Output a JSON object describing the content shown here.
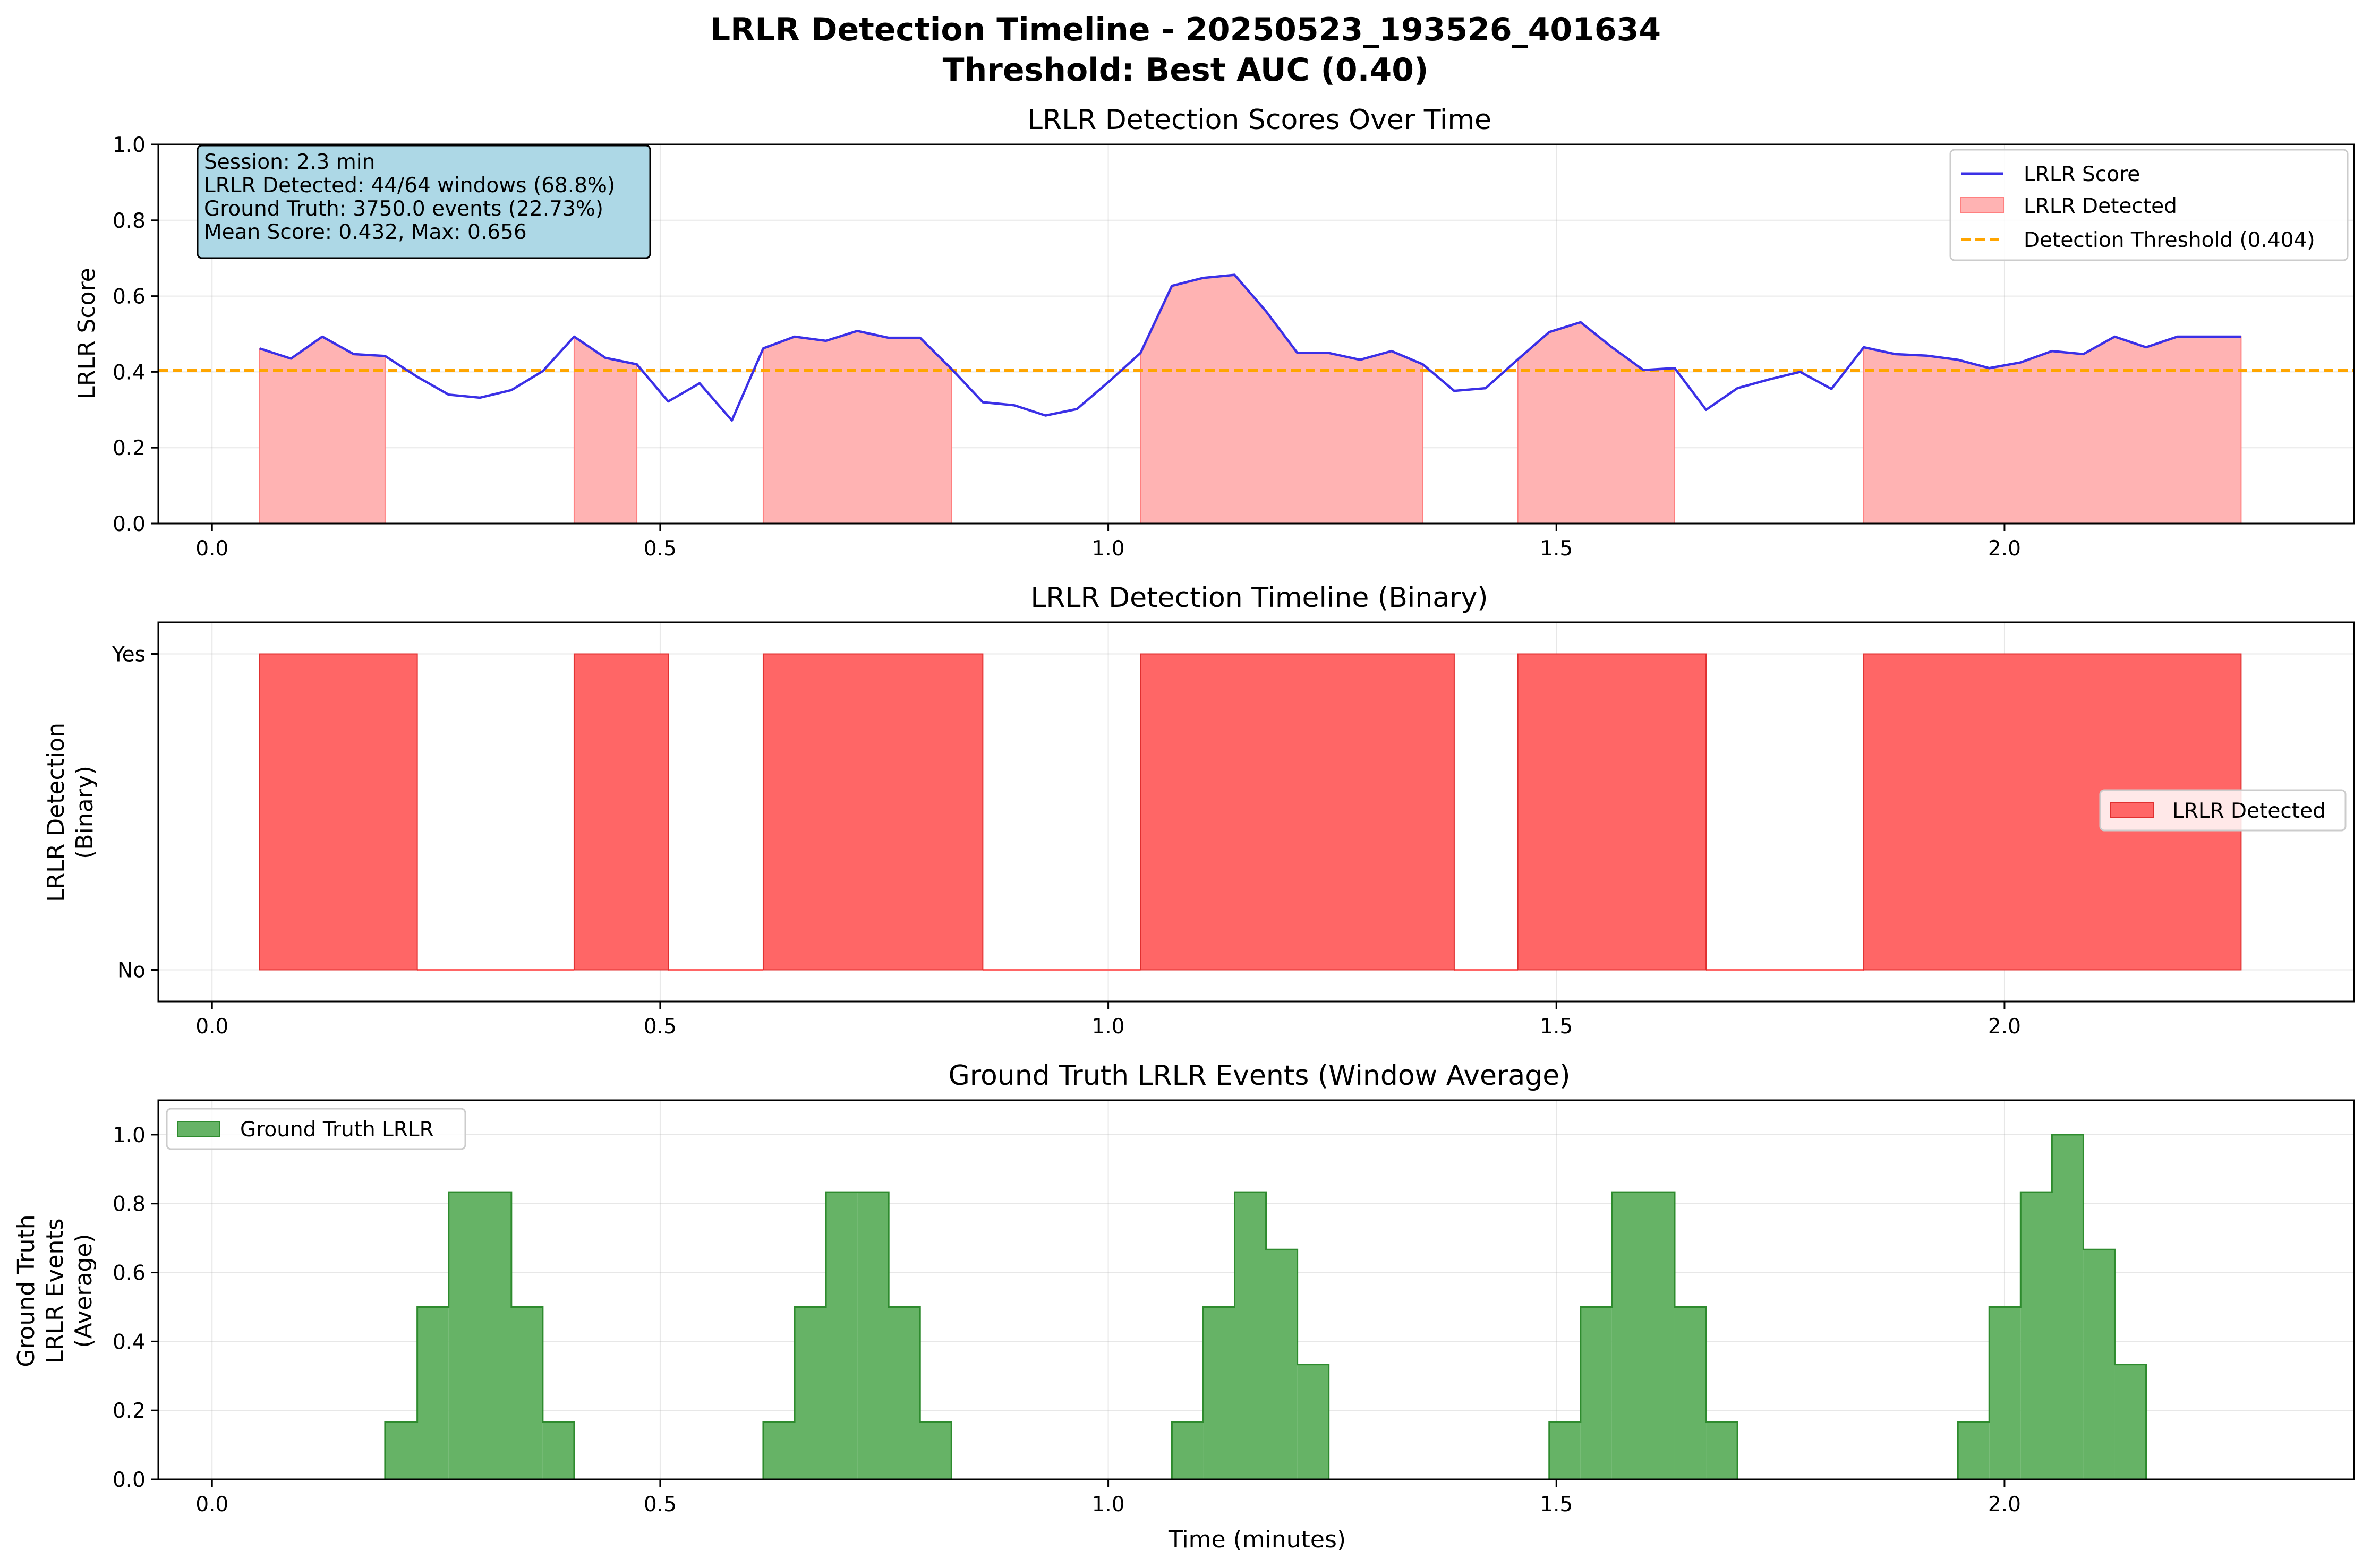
{
  "figure": {
    "title_line1": "LRLR Detection Timeline - 20250523_193526_401634",
    "title_line2": "Threshold: Best AUC (0.40)"
  },
  "colors": {
    "score_line": "#3b30e6",
    "detected_fill": "#ffb3b3",
    "binary_fill": "#ff6666",
    "threshold": "#ffa500",
    "ground_truth_fill": "#66b366",
    "ground_truth_edge": "#2e8b2e",
    "info_box": "#add8e6"
  },
  "chart_data": [
    {
      "type": "line",
      "title": "LRLR Detection Scores Over Time",
      "xlabel": "",
      "ylabel": "LRLR Score",
      "xlim": [
        -0.06,
        2.39
      ],
      "ylim": [
        0,
        1
      ],
      "xticks": [
        "0.0",
        "0.5",
        "1.0",
        "1.5",
        "2.0"
      ],
      "yticks": [
        "0.0",
        "0.2",
        "0.4",
        "0.6",
        "0.8",
        "1.0"
      ],
      "grid": true,
      "legend_position": "upper right",
      "legend": [
        "LRLR Score",
        "LRLR Detected",
        "Detection Threshold (0.404)"
      ],
      "threshold": 0.404,
      "info_box": [
        "Session: 2.3 min",
        "LRLR Detected: 44/64 windows (68.8%)",
        "Ground Truth: 3750.0 events (22.73%)",
        "Mean Score: 0.432, Max: 0.656"
      ],
      "series": [
        {
          "name": "LRLR Score",
          "x": [
            0.053,
            0.088,
            0.123,
            0.158,
            0.193,
            0.229,
            0.264,
            0.299,
            0.334,
            0.369,
            0.404,
            0.439,
            0.474,
            0.509,
            0.544,
            0.58,
            0.615,
            0.65,
            0.685,
            0.72,
            0.755,
            0.79,
            0.825,
            0.86,
            0.895,
            0.93,
            0.965,
            1.001,
            1.036,
            1.071,
            1.106,
            1.141,
            1.176,
            1.211,
            1.246,
            1.281,
            1.316,
            1.351,
            1.386,
            1.421,
            1.457,
            1.492,
            1.527,
            1.562,
            1.597,
            1.632,
            1.667,
            1.702,
            1.737,
            1.772,
            1.807,
            1.843,
            1.878,
            1.913,
            1.948,
            1.983,
            2.018,
            2.053,
            2.088,
            2.123,
            2.158,
            2.193,
            2.229,
            2.264
          ],
          "values": [
            0.462,
            0.435,
            0.493,
            0.447,
            0.442,
            0.387,
            0.34,
            0.332,
            0.352,
            0.402,
            0.493,
            0.437,
            0.42,
            0.322,
            0.37,
            0.272,
            0.462,
            0.493,
            0.482,
            0.508,
            0.49,
            0.49,
            0.408,
            0.32,
            0.312,
            0.285,
            0.302,
            0.375,
            0.45,
            0.627,
            0.648,
            0.656,
            0.56,
            0.45,
            0.45,
            0.432,
            0.455,
            0.42,
            0.35,
            0.357,
            0.433,
            0.505,
            0.531,
            0.465,
            0.405,
            0.41,
            0.3,
            0.357,
            0.38,
            0.4,
            0.355,
            0.465,
            0.447,
            0.443,
            0.432,
            0.41,
            0.425,
            0.455,
            0.447,
            0.493,
            0.465,
            0.493,
            0.493,
            0.493
          ]
        }
      ],
      "detected_regions": [
        [
          0.053,
          0.193
        ],
        [
          0.404,
          0.474
        ],
        [
          0.615,
          0.825
        ],
        [
          1.036,
          1.351
        ],
        [
          1.457,
          1.632
        ],
        [
          1.843,
          2.264
        ]
      ]
    },
    {
      "type": "area",
      "title": "LRLR Detection Timeline (Binary)",
      "xlabel": "",
      "ylabel_line1": "LRLR Detection",
      "ylabel_line2": "(Binary)",
      "xlim": [
        -0.06,
        2.39
      ],
      "ylim": [
        -0.1,
        1.1
      ],
      "xticks": [
        "0.0",
        "0.5",
        "1.0",
        "1.5",
        "2.0"
      ],
      "yticks": [
        "No",
        "Yes"
      ],
      "grid": true,
      "legend_position": "center right",
      "legend": [
        "LRLR Detected"
      ],
      "detected_regions": [
        [
          0.053,
          0.229
        ],
        [
          0.404,
          0.509
        ],
        [
          0.615,
          0.86
        ],
        [
          1.036,
          1.386
        ],
        [
          1.457,
          1.667
        ],
        [
          1.843,
          2.264
        ]
      ],
      "x_end": 2.264
    },
    {
      "type": "area",
      "title": "Ground Truth LRLR Events (Window Average)",
      "xlabel": "Time (minutes)",
      "ylabel_line1": "Ground Truth",
      "ylabel_line2": "LRLR Events",
      "ylabel_line3": "(Average)",
      "xlim": [
        -0.06,
        2.39
      ],
      "ylim": [
        0,
        1.1
      ],
      "xticks": [
        "0.0",
        "0.5",
        "1.0",
        "1.5",
        "2.0"
      ],
      "yticks": [
        "0.0",
        "0.2",
        "0.4",
        "0.6",
        "0.8",
        "1.0"
      ],
      "grid": true,
      "legend_position": "upper left",
      "legend": [
        "Ground Truth LRLR"
      ],
      "x": [
        0.053,
        0.088,
        0.123,
        0.158,
        0.193,
        0.229,
        0.264,
        0.299,
        0.334,
        0.369,
        0.404,
        0.439,
        0.474,
        0.509,
        0.544,
        0.58,
        0.615,
        0.65,
        0.685,
        0.72,
        0.755,
        0.79,
        0.825,
        0.86,
        0.895,
        0.93,
        0.965,
        1.001,
        1.036,
        1.071,
        1.106,
        1.141,
        1.176,
        1.211,
        1.246,
        1.281,
        1.316,
        1.351,
        1.386,
        1.421,
        1.457,
        1.492,
        1.527,
        1.562,
        1.597,
        1.632,
        1.667,
        1.702,
        1.737,
        1.772,
        1.807,
        1.843,
        1.878,
        1.913,
        1.948,
        1.983,
        2.018,
        2.053,
        2.088,
        2.123,
        2.158,
        2.193,
        2.229,
        2.264
      ],
      "values": [
        0,
        0,
        0,
        0,
        0.1667,
        0.5,
        0.8333,
        0.8333,
        0.5,
        0.1667,
        0,
        0,
        0,
        0,
        0,
        0,
        0.1667,
        0.5,
        0.8333,
        0.8333,
        0.5,
        0.1667,
        0,
        0,
        0,
        0,
        0,
        0,
        0,
        0.1667,
        0.5,
        0.8333,
        0.6667,
        0.3333,
        0,
        0,
        0,
        0,
        0,
        0,
        0,
        0.1667,
        0.5,
        0.8333,
        0.8333,
        0.5,
        0.1667,
        0,
        0,
        0,
        0,
        0,
        0,
        0,
        0.1667,
        0.5,
        0.8333,
        1.0,
        0.6667,
        0.3333,
        0,
        0,
        0,
        0
      ]
    }
  ]
}
